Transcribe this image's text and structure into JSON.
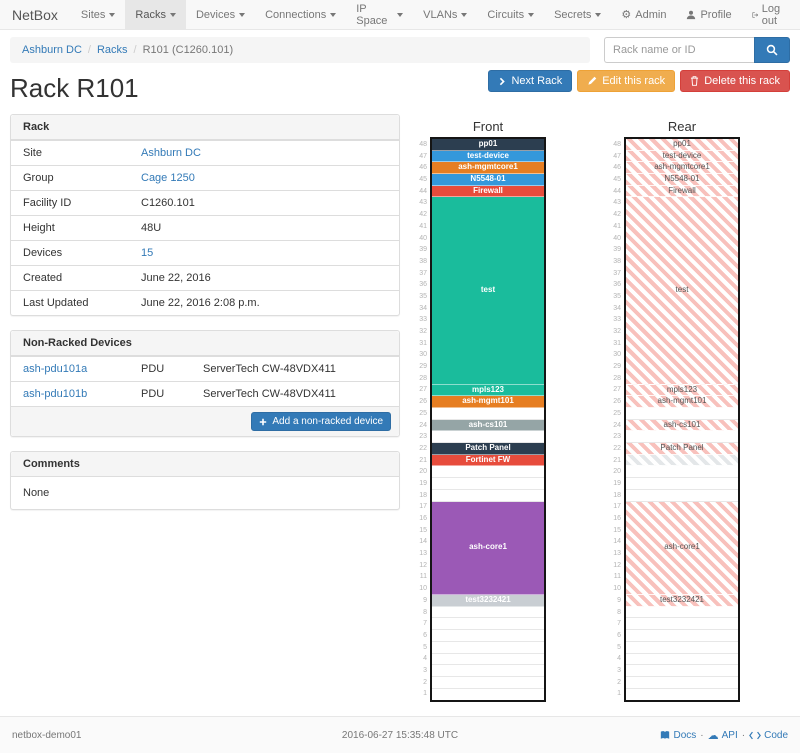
{
  "navbar": {
    "brand": "NetBox",
    "items": [
      {
        "label": "Sites"
      },
      {
        "label": "Racks"
      },
      {
        "label": "Devices"
      },
      {
        "label": "Connections"
      },
      {
        "label": "IP Space"
      },
      {
        "label": "VLANs"
      },
      {
        "label": "Circuits"
      },
      {
        "label": "Secrets"
      }
    ],
    "right_items": [
      {
        "label": "Admin",
        "icon": "gear-icon"
      },
      {
        "label": "Profile",
        "icon": "user-icon"
      },
      {
        "label": "Log out",
        "icon": "logout-icon"
      }
    ]
  },
  "breadcrumb": {
    "items": [
      {
        "label": "Ashburn DC"
      },
      {
        "label": "Racks"
      },
      {
        "label": "R101 (C1260.101)"
      }
    ]
  },
  "search": {
    "placeholder": "Rack name or ID"
  },
  "page": {
    "title": "Rack R101"
  },
  "actions": {
    "next": "Next Rack",
    "edit": "Edit this rack",
    "delete": "Delete this rack"
  },
  "rack_panel": {
    "title": "Rack",
    "rows": [
      {
        "label": "Site",
        "value": "Ashburn DC",
        "link": true
      },
      {
        "label": "Group",
        "value": "Cage 1250",
        "link": true
      },
      {
        "label": "Facility ID",
        "value": "C1260.101",
        "link": false
      },
      {
        "label": "Height",
        "value": "48U",
        "link": false
      },
      {
        "label": "Devices",
        "value": "15",
        "link": true
      },
      {
        "label": "Created",
        "value": "June 22, 2016",
        "link": false
      },
      {
        "label": "Last Updated",
        "value": "June 22, 2016 2:08 p.m.",
        "link": false
      }
    ]
  },
  "non_racked": {
    "title": "Non-Racked Devices",
    "rows": [
      {
        "name": "ash-pdu101a",
        "role": "PDU",
        "model": "ServerTech CW-48VDX411"
      },
      {
        "name": "ash-pdu101b",
        "role": "PDU",
        "model": "ServerTech CW-48VDX411"
      }
    ],
    "add_button": "Add a non-racked device"
  },
  "comments": {
    "title": "Comments",
    "body": "None"
  },
  "elevations": {
    "front": {
      "title": "Front",
      "units": 48,
      "striped": false,
      "blocks": [
        {
          "u": 48,
          "size": 1,
          "label": "pp01",
          "bg": "#2c3e50",
          "type": "device"
        },
        {
          "u": 47,
          "size": 1,
          "label": "test-device",
          "bg": "#3498db",
          "type": "device"
        },
        {
          "u": 46,
          "size": 1,
          "label": "ash-mgmtcore1",
          "bg": "#e67e22",
          "type": "device"
        },
        {
          "u": 45,
          "size": 1,
          "label": "N5548-01",
          "bg": "#3498db",
          "type": "device"
        },
        {
          "u": 44,
          "size": 1,
          "label": "Firewall",
          "bg": "#e74c3c",
          "type": "device"
        },
        {
          "u": 43,
          "size": 16,
          "label": "test",
          "bg": "#1abc9c",
          "type": "device"
        },
        {
          "u": 27,
          "size": 1,
          "label": "mpls123",
          "bg": "#1abc9c",
          "type": "device"
        },
        {
          "u": 26,
          "size": 1,
          "label": "ash-mgmt101",
          "bg": "#e67e22",
          "type": "device"
        },
        {
          "u": 25,
          "size": 1,
          "label": "",
          "type": "empty"
        },
        {
          "u": 24,
          "size": 1,
          "label": "ash-cs101",
          "bg": "#95a5a6",
          "type": "device"
        },
        {
          "u": 23,
          "size": 1,
          "label": "",
          "type": "empty"
        },
        {
          "u": 22,
          "size": 1,
          "label": "Patch Panel",
          "bg": "#2c3e50",
          "type": "device"
        },
        {
          "u": 21,
          "size": 1,
          "label": "Fortinet FW",
          "bg": "#e74c3c",
          "type": "device"
        },
        {
          "u": 20,
          "size": 1,
          "label": "",
          "type": "empty"
        },
        {
          "u": 19,
          "size": 1,
          "label": "",
          "type": "empty"
        },
        {
          "u": 18,
          "size": 1,
          "label": "",
          "type": "empty"
        },
        {
          "u": 17,
          "size": 8,
          "label": "ash-core1",
          "bg": "#9b59b6",
          "type": "device"
        },
        {
          "u": 9,
          "size": 1,
          "label": "test3232421",
          "bg": "#c9ced3",
          "type": "device"
        },
        {
          "u": 8,
          "size": 1,
          "label": "",
          "type": "empty"
        },
        {
          "u": 7,
          "size": 1,
          "label": "",
          "type": "empty"
        },
        {
          "u": 6,
          "size": 1,
          "label": "",
          "type": "empty"
        },
        {
          "u": 5,
          "size": 1,
          "label": "",
          "type": "empty"
        },
        {
          "u": 4,
          "size": 1,
          "label": "",
          "type": "empty"
        },
        {
          "u": 3,
          "size": 1,
          "label": "",
          "type": "empty"
        },
        {
          "u": 2,
          "size": 1,
          "label": "",
          "type": "empty"
        },
        {
          "u": 1,
          "size": 1,
          "label": "",
          "type": "empty"
        }
      ]
    },
    "rear": {
      "title": "Rear",
      "units": 48,
      "striped": true,
      "blocks": [
        {
          "u": 48,
          "size": 1,
          "label": "pp01",
          "type": "device"
        },
        {
          "u": 47,
          "size": 1,
          "label": "test-device",
          "type": "device"
        },
        {
          "u": 46,
          "size": 1,
          "label": "ash-mgmtcore1",
          "type": "device"
        },
        {
          "u": 45,
          "size": 1,
          "label": "N5548-01",
          "type": "device"
        },
        {
          "u": 44,
          "size": 1,
          "label": "Firewall",
          "type": "device"
        },
        {
          "u": 43,
          "size": 16,
          "label": "test",
          "type": "device"
        },
        {
          "u": 27,
          "size": 1,
          "label": "mpls123",
          "type": "device"
        },
        {
          "u": 26,
          "size": 1,
          "label": "ash-mgmt101",
          "type": "device"
        },
        {
          "u": 25,
          "size": 1,
          "label": "",
          "type": "empty"
        },
        {
          "u": 24,
          "size": 1,
          "label": "ash-cs101",
          "type": "device"
        },
        {
          "u": 23,
          "size": 1,
          "label": "",
          "type": "empty"
        },
        {
          "u": 22,
          "size": 1,
          "label": "Patch Panel",
          "type": "device"
        },
        {
          "u": 21,
          "size": 1,
          "label": "",
          "type": "blocked"
        },
        {
          "u": 20,
          "size": 1,
          "label": "",
          "type": "empty"
        },
        {
          "u": 19,
          "size": 1,
          "label": "",
          "type": "empty"
        },
        {
          "u": 18,
          "size": 1,
          "label": "",
          "type": "empty"
        },
        {
          "u": 17,
          "size": 8,
          "label": "ash-core1",
          "type": "device"
        },
        {
          "u": 9,
          "size": 1,
          "label": "test3232421",
          "type": "device"
        },
        {
          "u": 8,
          "size": 1,
          "label": "",
          "type": "empty"
        },
        {
          "u": 7,
          "size": 1,
          "label": "",
          "type": "empty"
        },
        {
          "u": 6,
          "size": 1,
          "label": "",
          "type": "empty"
        },
        {
          "u": 5,
          "size": 1,
          "label": "",
          "type": "empty"
        },
        {
          "u": 4,
          "size": 1,
          "label": "",
          "type": "empty"
        },
        {
          "u": 3,
          "size": 1,
          "label": "",
          "type": "empty"
        },
        {
          "u": 2,
          "size": 1,
          "label": "",
          "type": "empty"
        },
        {
          "u": 1,
          "size": 1,
          "label": "",
          "type": "empty"
        }
      ]
    }
  },
  "footer": {
    "hostname": "netbox-demo01",
    "timestamp": "2016-06-27 15:35:48 UTC",
    "links": [
      {
        "label": "Docs",
        "icon": "book-icon"
      },
      {
        "label": "API",
        "icon": "cloud-icon"
      },
      {
        "label": "Code",
        "icon": "code-icon"
      }
    ]
  },
  "colors": {
    "accent": "#337ab7",
    "warning": "#f0ad4e",
    "danger": "#d9534f",
    "rear_stripe": "#f8c1bc",
    "blocked_stripe": "#e4e7e9"
  }
}
